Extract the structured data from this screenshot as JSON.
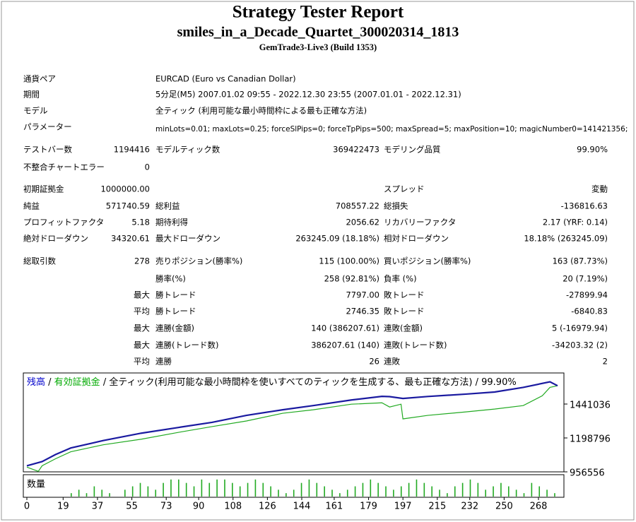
{
  "header": {
    "title": "Strategy Tester Report",
    "subtitle": "smiles_in_a_Decade_Quartet_300020314_1813",
    "server": "GemTrade3-Live3 (Build 1353)"
  },
  "info": [
    [
      "通貨ペア",
      "EURCAD (Euro vs Canadian Dollar)"
    ],
    [
      "期間",
      "5分足(M5) 2007.01.02 09:55 - 2022.12.30 23:55 (2007.01.01 - 2022.12.31)"
    ],
    [
      "モデル",
      "全ティック (利用可能な最小時間枠による最も正確な方法)"
    ],
    [
      "パラメーター",
      "minLots=0.01; maxLots=0.25; forceSlPips=0; forceTpPips=500; maxSpread=5; maxPosition=10; magicNumber0=141421356;"
    ]
  ],
  "stats": [
    {
      "a": [
        "テストバー数",
        "1194416"
      ],
      "b": [
        "モデルティック数",
        "369422473"
      ],
      "c": [
        "モデリング品質",
        "99.90%"
      ]
    },
    {
      "a": [
        "不整合チャートエラー",
        "0"
      ]
    },
    {
      "a": [
        "初期証拠金",
        "1000000.00"
      ],
      "c": [
        "スプレッド",
        "変動"
      ]
    },
    {
      "a": [
        "純益",
        "571740.59"
      ],
      "b": [
        "総利益",
        "708557.22"
      ],
      "c": [
        "総損失",
        "-136816.63"
      ]
    },
    {
      "a": [
        "プロフィットファクタ",
        "5.18"
      ],
      "b": [
        "期待利得",
        "2056.62"
      ],
      "c": [
        "リカバリーファクタ",
        "2.17 (YRF: 0.14)"
      ]
    },
    {
      "a": [
        "絶対ドローダウン",
        "34320.61"
      ],
      "b": [
        "最大ドローダウン",
        "263245.09 (18.18%)"
      ],
      "c": [
        "相対ドローダウン",
        "18.18% (263245.09)"
      ]
    },
    {
      "a": [
        "総取引数",
        "278"
      ],
      "b": [
        "売りポジション(勝率%)",
        "115 (100.00%)"
      ],
      "c": [
        "買いポジション(勝率%)",
        "163 (87.73%)"
      ]
    },
    {
      "b": [
        "勝率(%)",
        "258 (92.81%)"
      ],
      "c": [
        "負率 (%)",
        "20 (7.19%)"
      ]
    },
    {
      "q": "最大",
      "b": [
        "勝トレード",
        "7797.00"
      ],
      "c": [
        "敗トレード",
        "-27899.94"
      ]
    },
    {
      "q": "平均",
      "b": [
        "勝トレード",
        "2746.35"
      ],
      "c": [
        "敗トレード",
        "-6840.83"
      ]
    },
    {
      "q": "最大",
      "b": [
        "連勝(金額)",
        "140 (386207.61)"
      ],
      "c": [
        "連敗(金額)",
        "5 (-16979.94)"
      ]
    },
    {
      "q": "最大",
      "b": [
        "連勝(トレード数)",
        "386207.61 (140)"
      ],
      "c": [
        "連敗(トレード数)",
        "-34203.32 (2)"
      ]
    },
    {
      "q": "平均",
      "b": [
        "連勝",
        "26"
      ],
      "c": [
        "連敗",
        "2"
      ]
    }
  ],
  "graph": {
    "legend": [
      {
        "text": "残高",
        "color": "#0000cc"
      },
      {
        "text": " / "
      },
      {
        "text": "有効証拠金",
        "color": "#00aa00"
      },
      {
        "text": " / 全ティック(利用可能な最小時間枠を使いすべてのティックを生成する、最も正確な方法) / 99.90%"
      }
    ],
    "ylim": [
      956556,
      1663136
    ],
    "yticks": [
      956556,
      1198796,
      1441036
    ],
    "xlim": [
      0,
      280
    ],
    "xticks": [
      0,
      19,
      37,
      55,
      73,
      90,
      108,
      126,
      144,
      161,
      179,
      197,
      215,
      232,
      250,
      268
    ],
    "balance": {
      "color": "#1a1aa0",
      "x": [
        0,
        8,
        15,
        23,
        40,
        60,
        80,
        97,
        115,
        134,
        150,
        170,
        186,
        190,
        197,
        210,
        230,
        245,
        260,
        274,
        278
      ],
      "values": [
        1000000,
        1030000,
        1080000,
        1127000,
        1180000,
        1233000,
        1275000,
        1310000,
        1360000,
        1400000,
        1430000,
        1470000,
        1496000,
        1494000,
        1481000,
        1495000,
        1512000,
        1527000,
        1560000,
        1600000,
        1572000
      ]
    },
    "equity": {
      "color": "#22aa22",
      "x": [
        0,
        6,
        8,
        15,
        23,
        40,
        60,
        80,
        97,
        115,
        134,
        150,
        170,
        186,
        190,
        196,
        197,
        210,
        230,
        245,
        260,
        270,
        274,
        278
      ],
      "values": [
        990000,
        960000,
        1000000,
        1050000,
        1100000,
        1150000,
        1190000,
        1240000,
        1280000,
        1320000,
        1375000,
        1400000,
        1440000,
        1450000,
        1420000,
        1440000,
        1335000,
        1360000,
        1385000,
        1405000,
        1430000,
        1500000,
        1560000,
        1572000
      ]
    },
    "volume": {
      "label": "数量",
      "color": "#22aa22",
      "ylim": [
        0,
        6
      ],
      "values": [
        1,
        2,
        1,
        3,
        2,
        1,
        0,
        2,
        3,
        4,
        3,
        2,
        4,
        5,
        5,
        4,
        3,
        5,
        4,
        5,
        5,
        4,
        3,
        4,
        5,
        4,
        3,
        2,
        1,
        2,
        4,
        5,
        4,
        3,
        2,
        1,
        2,
        3,
        4,
        5,
        4,
        3,
        2,
        3,
        4,
        5,
        4,
        3,
        2,
        1,
        3,
        4,
        5,
        4,
        2,
        3,
        4,
        3,
        2,
        1,
        4,
        3,
        2,
        1
      ]
    }
  }
}
